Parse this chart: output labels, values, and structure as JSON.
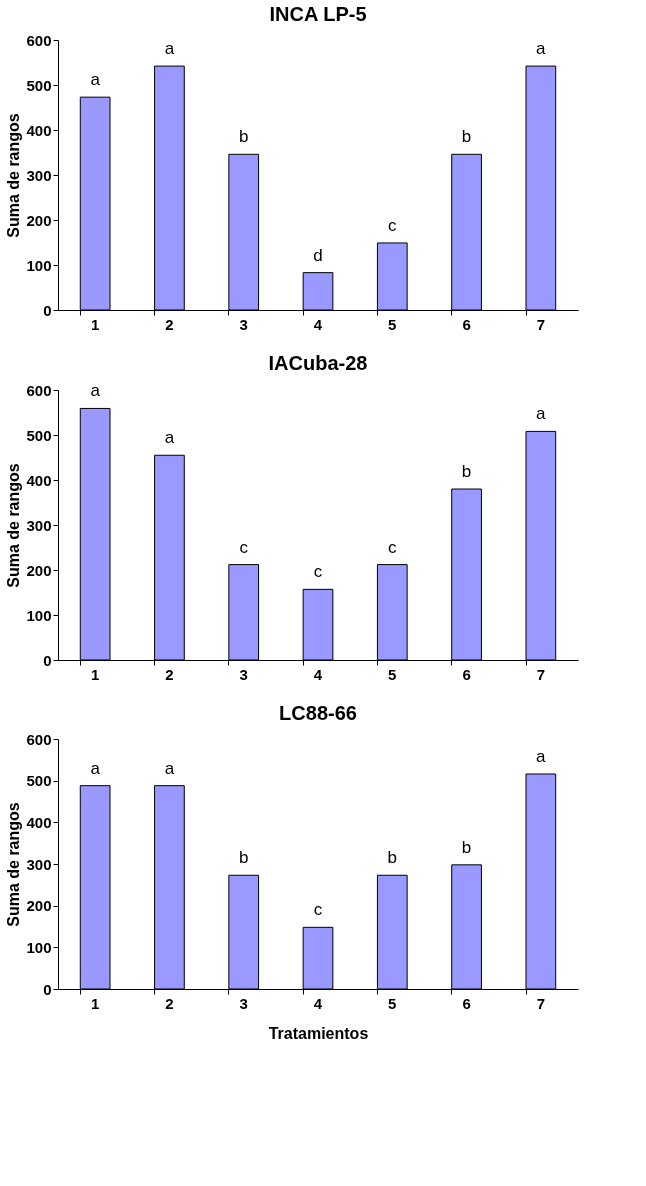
{
  "chart_data": [
    {
      "type": "bar",
      "title": "INCA LP-5",
      "ylabel": "Suma de rangos",
      "categories": [
        "1",
        "2",
        "3",
        "4",
        "5",
        "6",
        "7"
      ],
      "values": [
        473,
        542,
        346,
        83,
        149,
        346,
        542
      ],
      "color": "#9999ff",
      "ylim": [
        0,
        600
      ],
      "yticks": [
        0,
        100,
        200,
        300,
        400,
        500,
        600
      ],
      "grid": false,
      "annotations": [
        {
          "text": "a",
          "x": "1",
          "y": 473
        },
        {
          "text": "a",
          "x": "2",
          "y": 542
        },
        {
          "text": "b",
          "x": "3",
          "y": 346
        },
        {
          "text": "d",
          "x": "4",
          "y": 83
        },
        {
          "text": "c",
          "x": "5",
          "y": 149
        },
        {
          "text": "b",
          "x": "6",
          "y": 346
        },
        {
          "text": "a",
          "x": "7",
          "y": 542
        }
      ]
    },
    {
      "type": "bar",
      "title": "IACuba-28",
      "ylabel": "Suma de rangos",
      "categories": [
        "1",
        "2",
        "3",
        "4",
        "5",
        "6",
        "7"
      ],
      "values": [
        559,
        455,
        212,
        157,
        212,
        380,
        508
      ],
      "color": "#9999ff",
      "ylim": [
        0,
        600
      ],
      "yticks": [
        0,
        100,
        200,
        300,
        400,
        500,
        600
      ],
      "grid": false,
      "annotations": [
        {
          "text": "a",
          "x": "1",
          "y": 559
        },
        {
          "text": "a",
          "x": "2",
          "y": 455
        },
        {
          "text": "c",
          "x": "3",
          "y": 212
        },
        {
          "text": "c",
          "x": "4",
          "y": 157
        },
        {
          "text": "c",
          "x": "5",
          "y": 212
        },
        {
          "text": "b",
          "x": "6",
          "y": 380
        },
        {
          "text": "a",
          "x": "7",
          "y": 508
        }
      ]
    },
    {
      "type": "bar",
      "title": "LC88-66",
      "ylabel": "Suma de rangos",
      "xlabel": "Tratamientos",
      "categories": [
        "1",
        "2",
        "3",
        "4",
        "5",
        "6",
        "7"
      ],
      "values": [
        488,
        488,
        273,
        148,
        273,
        298,
        516
      ],
      "color": "#9999ff",
      "ylim": [
        0,
        600
      ],
      "yticks": [
        0,
        100,
        200,
        300,
        400,
        500,
        600
      ],
      "grid": false,
      "annotations": [
        {
          "text": "a",
          "x": "1",
          "y": 488
        },
        {
          "text": "a",
          "x": "2",
          "y": 488
        },
        {
          "text": "b",
          "x": "3",
          "y": 273
        },
        {
          "text": "c",
          "x": "4",
          "y": 148
        },
        {
          "text": "b",
          "x": "5",
          "y": 273
        },
        {
          "text": "b",
          "x": "6",
          "y": 298
        },
        {
          "text": "a",
          "x": "7",
          "y": 516
        }
      ]
    }
  ]
}
